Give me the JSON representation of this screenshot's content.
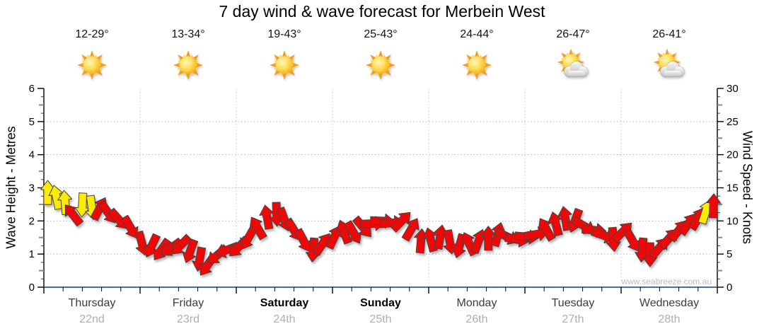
{
  "title": "7 day wind & wave forecast for Merbein West",
  "watermark": "www.seabreeze.com.au",
  "days": [
    {
      "name": "Thursday",
      "date": "22nd",
      "temp": "12-29°",
      "icon": "sunny",
      "bold": false
    },
    {
      "name": "Friday",
      "date": "23rd",
      "temp": "13-34°",
      "icon": "sunny",
      "bold": false
    },
    {
      "name": "Saturday",
      "date": "24th",
      "temp": "19-43°",
      "icon": "sunny",
      "bold": true
    },
    {
      "name": "Sunday",
      "date": "25th",
      "temp": "25-43°",
      "icon": "sunny",
      "bold": true
    },
    {
      "name": "Monday",
      "date": "26th",
      "temp": "24-44°",
      "icon": "sunny",
      "bold": false
    },
    {
      "name": "Tuesday",
      "date": "27th",
      "temp": "26-47°",
      "icon": "partly-cloudy",
      "bold": false
    },
    {
      "name": "Wednesday",
      "date": "28th",
      "temp": "26-41°",
      "icon": "partly-cloudy",
      "bold": false
    }
  ],
  "colors": {
    "arrow_red": "#ee0808",
    "arrow_yellow": "#ffeb00",
    "arrow_outline": "#444444",
    "baseline_blue": "#2e5c8a",
    "grid_gray": "#b3b3b3",
    "axis_black": "#000000",
    "sun_core": "#f6a80b",
    "sun_ray_dark": "#f09e1e",
    "sun_ray_light": "#ffd24d",
    "cloud_gray": "#c0c0c0"
  },
  "chart_data": {
    "type": "scatter",
    "marker": "wind-direction-arrow",
    "title": "7 day wind & wave forecast for Merbein West",
    "categories": [
      "Thursday 22nd",
      "Friday 23rd",
      "Saturday 24th",
      "Sunday 25th",
      "Monday 26th",
      "Tuesday 27th",
      "Wednesday 28th"
    ],
    "left_axis": {
      "label": "Wave Height - Metres",
      "min": 0,
      "max": 6,
      "ticks": [
        0,
        1,
        2,
        3,
        4,
        5,
        6
      ]
    },
    "right_axis": {
      "label": "Wind Speed - Knots",
      "min": 0,
      "max": 30,
      "ticks": [
        0,
        5,
        10,
        15,
        20,
        25,
        30
      ]
    },
    "grid": true,
    "legend_position": "none",
    "point_format": [
      "day_offset_0_to_7",
      "wind_speed_knots",
      "arrow_direction_deg_cw_from_up",
      "color_Y_yellow_R_red"
    ],
    "points": [
      [
        0.04,
        14.3,
        0,
        "Y"
      ],
      [
        0.13,
        13.6,
        -12,
        "Y"
      ],
      [
        0.22,
        12.8,
        -5,
        "Y"
      ],
      [
        0.3,
        11.0,
        -38,
        "R"
      ],
      [
        0.4,
        12.4,
        183,
        "Y"
      ],
      [
        0.5,
        12.0,
        172,
        "Y"
      ],
      [
        0.58,
        11.9,
        28,
        "R"
      ],
      [
        0.67,
        11.2,
        145,
        "R"
      ],
      [
        0.78,
        10.2,
        138,
        "R"
      ],
      [
        0.9,
        9.0,
        150,
        "R"
      ],
      [
        1.02,
        6.6,
        165,
        "R"
      ],
      [
        1.12,
        6.2,
        205,
        "R"
      ],
      [
        1.22,
        5.6,
        215,
        "R"
      ],
      [
        1.32,
        5.9,
        235,
        "R"
      ],
      [
        1.42,
        6.3,
        225,
        "R"
      ],
      [
        1.52,
        5.4,
        200,
        "R"
      ],
      [
        1.62,
        4.2,
        190,
        "R"
      ],
      [
        1.7,
        3.3,
        215,
        "R"
      ],
      [
        1.8,
        4.8,
        230,
        "R"
      ],
      [
        1.9,
        5.6,
        250,
        "R"
      ],
      [
        2.02,
        6.0,
        225,
        "R"
      ],
      [
        2.12,
        7.3,
        210,
        "R"
      ],
      [
        2.22,
        9.0,
        -30,
        "R"
      ],
      [
        2.32,
        10.6,
        -10,
        "R"
      ],
      [
        2.42,
        11.0,
        178,
        "R"
      ],
      [
        2.5,
        10.2,
        160,
        "R"
      ],
      [
        2.6,
        8.6,
        148,
        "R"
      ],
      [
        2.7,
        7.0,
        152,
        "R"
      ],
      [
        2.8,
        5.6,
        185,
        "R"
      ],
      [
        2.9,
        6.6,
        35,
        "R"
      ],
      [
        3.02,
        7.6,
        25,
        "R"
      ],
      [
        3.12,
        8.4,
        -20,
        "R"
      ],
      [
        3.22,
        8.2,
        150,
        "R"
      ],
      [
        3.32,
        9.0,
        140,
        "R"
      ],
      [
        3.42,
        9.6,
        88,
        "R"
      ],
      [
        3.52,
        10.0,
        92,
        "R"
      ],
      [
        3.62,
        9.7,
        85,
        "R"
      ],
      [
        3.72,
        10.0,
        45,
        "R"
      ],
      [
        3.82,
        8.8,
        30,
        "R"
      ],
      [
        3.92,
        7.0,
        5,
        "R"
      ],
      [
        4.02,
        7.2,
        -15,
        "R"
      ],
      [
        4.12,
        7.6,
        10,
        "R"
      ],
      [
        4.22,
        6.8,
        170,
        "R"
      ],
      [
        4.32,
        6.2,
        195,
        "R"
      ],
      [
        4.42,
        6.6,
        -25,
        "R"
      ],
      [
        4.52,
        7.0,
        20,
        "R"
      ],
      [
        4.62,
        7.4,
        0,
        "R"
      ],
      [
        4.72,
        8.0,
        15,
        "R"
      ],
      [
        4.82,
        7.6,
        115,
        "R"
      ],
      [
        4.92,
        7.2,
        100,
        "R"
      ],
      [
        5.02,
        7.6,
        95,
        "R"
      ],
      [
        5.12,
        8.0,
        80,
        "R"
      ],
      [
        5.22,
        8.8,
        -30,
        "R"
      ],
      [
        5.32,
        9.6,
        -15,
        "R"
      ],
      [
        5.42,
        10.4,
        -10,
        "R"
      ],
      [
        5.52,
        10.0,
        200,
        "R"
      ],
      [
        5.62,
        9.2,
        120,
        "R"
      ],
      [
        5.72,
        8.6,
        95,
        "R"
      ],
      [
        5.82,
        7.8,
        110,
        "R"
      ],
      [
        5.92,
        7.2,
        175,
        "R"
      ],
      [
        6.02,
        8.4,
        45,
        "R"
      ],
      [
        6.12,
        7.0,
        150,
        "R"
      ],
      [
        6.22,
        5.6,
        185,
        "R"
      ],
      [
        6.3,
        4.9,
        180,
        "R"
      ],
      [
        6.4,
        6.0,
        40,
        "R"
      ],
      [
        6.5,
        7.4,
        42,
        "R"
      ],
      [
        6.6,
        8.6,
        38,
        "R"
      ],
      [
        6.7,
        9.6,
        35,
        "R"
      ],
      [
        6.8,
        10.4,
        30,
        "R"
      ],
      [
        6.88,
        11.4,
        18,
        "Y"
      ],
      [
        6.96,
        12.3,
        2,
        "R"
      ]
    ]
  }
}
